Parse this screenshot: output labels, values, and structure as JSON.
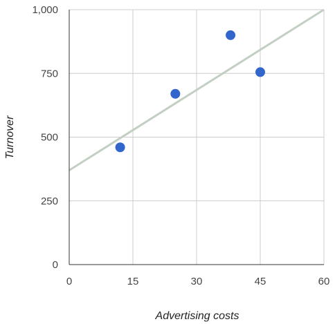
{
  "chart_data": {
    "type": "scatter",
    "title": "",
    "xlabel": "Advertising costs",
    "ylabel": "Turnover",
    "xlim": [
      0,
      60
    ],
    "ylim": [
      0,
      1000
    ],
    "x_ticks": [
      0,
      15,
      30,
      45,
      60
    ],
    "x_tick_labels": [
      "0",
      "15",
      "30",
      "45",
      "60"
    ],
    "y_ticks": [
      0,
      250,
      500,
      750,
      1000
    ],
    "y_tick_labels": [
      "0",
      "250",
      "500",
      "750",
      "1,000"
    ],
    "grid": true,
    "legend": "none",
    "series": [
      {
        "points": [
          {
            "x": 12,
            "y": 460
          },
          {
            "x": 25,
            "y": 670
          },
          {
            "x": 38,
            "y": 900
          },
          {
            "x": 45,
            "y": 755
          }
        ]
      }
    ],
    "trendline": {
      "type": "linear",
      "intercept": 370,
      "slope": 10.5
    },
    "colors": {
      "points": "#3366cc",
      "trendline": "#c4cfc4",
      "grid": "#cccccc",
      "axis": "#333333",
      "tick_text": "#444444",
      "axis_title": "#222222"
    }
  }
}
